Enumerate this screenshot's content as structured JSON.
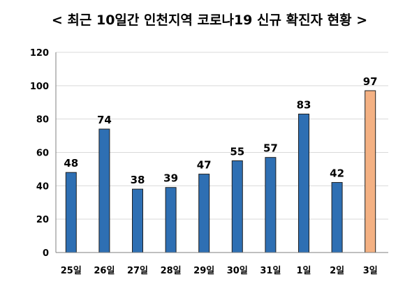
{
  "chart_data": {
    "type": "bar",
    "title": "< 최근 10일간 인천지역 코로나19 신규 확진자 현황 >",
    "categories": [
      "25일",
      "26일",
      "27일",
      "28일",
      "29일",
      "30일",
      "31일",
      "1일",
      "2일",
      "3일"
    ],
    "values": [
      48,
      74,
      38,
      39,
      47,
      55,
      57,
      83,
      42,
      97
    ],
    "ylim": [
      0,
      120
    ],
    "yticks": [
      0,
      20,
      40,
      60,
      80,
      100,
      120
    ],
    "grid": true,
    "legend": "none",
    "xlabel": "",
    "ylabel": "",
    "colors": {
      "bar": "#2e6fb3",
      "bar_highlight": "#f4b183",
      "bar_stroke": "#1f1f1f",
      "grid": "#d9d9d9",
      "axis": "#7f7f7f"
    },
    "highlight_index": 9
  }
}
